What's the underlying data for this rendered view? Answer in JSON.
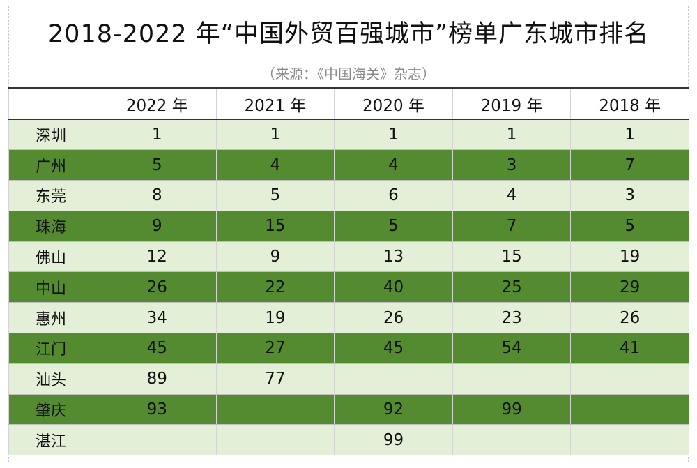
{
  "title": "2018-2022 年“中国外贸百强城市”榜单广东城市排名",
  "subtitle": "（来源：《中国海关》杂志）",
  "colors": {
    "header_bg": "#ffffff",
    "row_light": "#e3efd7",
    "row_dark": "#548a30"
  },
  "chart_data": {
    "type": "table",
    "columns": [
      "",
      "2022 年",
      "2021 年",
      "2020 年",
      "2019 年",
      "2018 年"
    ],
    "rows": [
      {
        "city": "深圳",
        "values": [
          "1",
          "1",
          "1",
          "1",
          "1"
        ]
      },
      {
        "city": "广州",
        "values": [
          "5",
          "4",
          "4",
          "3",
          "7"
        ]
      },
      {
        "city": "东莞",
        "values": [
          "8",
          "5",
          "6",
          "4",
          "3"
        ]
      },
      {
        "city": "珠海",
        "values": [
          "9",
          "15",
          "5",
          "7",
          "5"
        ]
      },
      {
        "city": "佛山",
        "values": [
          "12",
          "9",
          "13",
          "15",
          "19"
        ]
      },
      {
        "city": "中山",
        "values": [
          "26",
          "22",
          "40",
          "25",
          "29"
        ]
      },
      {
        "city": "惠州",
        "values": [
          "34",
          "19",
          "26",
          "23",
          "26"
        ]
      },
      {
        "city": "江门",
        "values": [
          "45",
          "27",
          "45",
          "54",
          "41"
        ]
      },
      {
        "city": "汕头",
        "values": [
          "89",
          "77",
          "",
          "",
          ""
        ]
      },
      {
        "city": "肇庆",
        "values": [
          "93",
          "",
          "92",
          "99",
          ""
        ]
      },
      {
        "city": "湛江",
        "values": [
          "",
          "",
          "99",
          "",
          ""
        ]
      }
    ]
  }
}
